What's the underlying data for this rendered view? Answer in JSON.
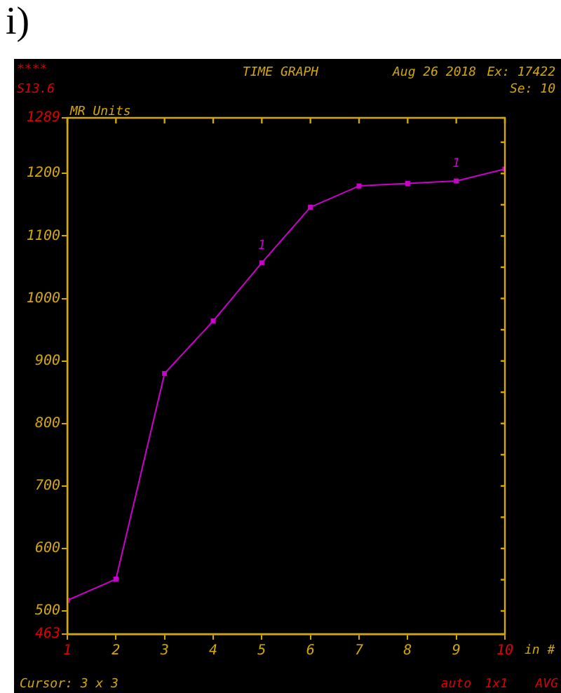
{
  "chart_data": {
    "type": "line",
    "title": "TIME GRAPH",
    "xlabel": "in #",
    "ylabel": "MR Units",
    "x": [
      1,
      2,
      3,
      4,
      5,
      6,
      7,
      8,
      9,
      10
    ],
    "series": [
      {
        "color": "#cc00cc",
        "values": [
          517,
          551,
          880,
          964,
          1057,
          1146,
          1180,
          1184,
          1188,
          1207
        ]
      }
    ],
    "xlim": [
      1,
      10
    ],
    "xticks": [
      1,
      2,
      3,
      4,
      5,
      6,
      7,
      8,
      9,
      10
    ],
    "ylim": [
      463,
      1289
    ],
    "yticks": [
      463,
      500,
      {
        "value": 550,
        "label": null
      },
      600,
      {
        "value": 650,
        "label": null
      },
      700,
      {
        "value": 750,
        "label": null
      },
      800,
      {
        "value": 850,
        "label": null
      },
      900,
      {
        "value": 950,
        "label": null
      },
      1000,
      {
        "value": 1050,
        "label": null
      },
      1100,
      {
        "value": 1150,
        "label": null
      },
      1200,
      {
        "value": 1250,
        "label": null
      },
      1289
    ],
    "grid": false,
    "legend": false,
    "marker": "square",
    "line_style": "solid",
    "annotations": [
      "i)",
      "****",
      "S13.6",
      "Aug 26 2018",
      "Ex: 17422",
      "Se: 10",
      "Cursor: 3 x 3",
      "auto",
      "1x1",
      "AVG",
      {
        "text": "1",
        "x": 5,
        "y": 1057
      },
      {
        "text": "1",
        "x": 9,
        "y": 1188
      }
    ]
  }
}
